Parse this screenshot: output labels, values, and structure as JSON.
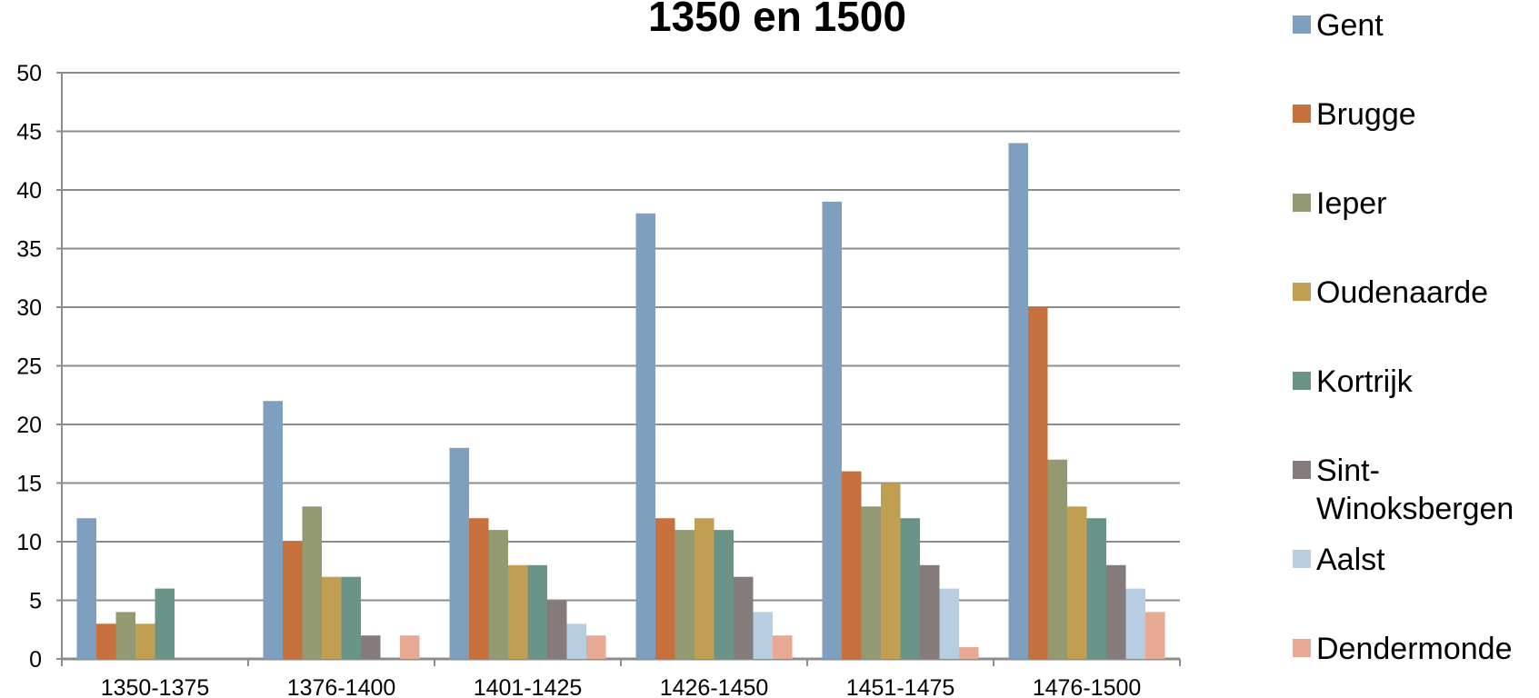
{
  "chart_data": {
    "type": "bar",
    "title": "1350 en 1500",
    "categories": [
      "1350-1375",
      "1376-1400",
      "1401-1425",
      "1426-1450",
      "1451-1475",
      "1476-1500"
    ],
    "ylim": [
      0,
      50
    ],
    "yticks": [
      0,
      5,
      10,
      15,
      20,
      25,
      30,
      35,
      40,
      45,
      50
    ],
    "grid": true,
    "legend_position": "right",
    "series": [
      {
        "name": "Gent",
        "color": "#7f9fbf",
        "values": [
          12,
          22,
          18,
          38,
          39,
          44
        ]
      },
      {
        "name": "Brugge",
        "color": "#c6703d",
        "values": [
          3,
          10,
          12,
          12,
          16,
          30
        ]
      },
      {
        "name": "Ieper",
        "color": "#939970",
        "values": [
          4,
          13,
          11,
          11,
          13,
          17
        ]
      },
      {
        "name": "Oudenaarde",
        "color": "#c09e52",
        "values": [
          3,
          7,
          8,
          12,
          15,
          13
        ]
      },
      {
        "name": "Kortrijk",
        "color": "#6a9487",
        "values": [
          6,
          7,
          8,
          11,
          12,
          12
        ]
      },
      {
        "name": "Sint-Winoksbergen",
        "color": "#857b7b",
        "values": [
          0,
          2,
          5,
          7,
          8,
          8
        ]
      },
      {
        "name": "Aalst",
        "color": "#b7cde1",
        "values": [
          0,
          0,
          3,
          4,
          6,
          6
        ]
      },
      {
        "name": "Dendermonde",
        "color": "#e7a894",
        "values": [
          0,
          2,
          2,
          2,
          1,
          4
        ]
      }
    ]
  }
}
